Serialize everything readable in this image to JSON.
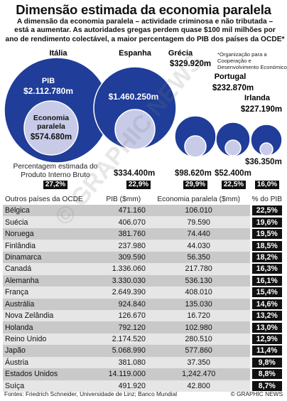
{
  "title": "Dimensão estimada da economia paralela",
  "intro": [
    "A dimensão da economia paralela – actividade criminosa e não tributada –",
    "está a aumentar. As autoridades gregas perdem quase $100 mil milhões por",
    "ano de rendimento colectável, a maior percentagem do PIB dos países da OCDE*"
  ],
  "note": "*Organização para a Cooperação e Desenvolvimento Económico",
  "colors": {
    "outer": "#1f3d99",
    "inner": "#c8cbe8",
    "dark": "#111111"
  },
  "bubbles": {
    "pib_label": "PIB",
    "shadow_label": "Economia paralela",
    "pct_caption": "Percentagem estimada do Produto Interno Bruto",
    "countries": [
      {
        "name": "Itália",
        "pib": "$2.112.780m",
        "shadow": "$574.680m",
        "pct": "27,2%"
      },
      {
        "name": "Espanha",
        "pib": "$1.460.250m",
        "shadow": "$334.400m",
        "pct": "22,9%"
      },
      {
        "name": "Grécia",
        "pib": "$329.920m",
        "shadow": "$98.620m",
        "pct": "29,9%"
      },
      {
        "name": "Portugal",
        "pib": "$232.870m",
        "shadow": "$52.400m",
        "pct": "22,5%"
      },
      {
        "name": "Irlanda",
        "pib": "$227.190m",
        "shadow": "$36.350m",
        "pct": "16,0%"
      }
    ]
  },
  "table": {
    "headers": [
      "Outros países da OCDE",
      "PIB ($mm)",
      "Economia paralela ($mm)",
      "% do PIB"
    ],
    "rows": [
      [
        "Bélgica",
        "471.160",
        "106.010",
        "22,5%"
      ],
      [
        "Suécia",
        "406.070",
        "79.590",
        "19,6%"
      ],
      [
        "Noruega",
        "381.760",
        "74.440",
        "19,5%"
      ],
      [
        "Finlândia",
        "237.980",
        "44.030",
        "18,5%"
      ],
      [
        "Dinamarca",
        "309.590",
        "56.350",
        "18,2%"
      ],
      [
        "Canadá",
        "1.336.060",
        "217.780",
        "16,3%"
      ],
      [
        "Alemanha",
        "3.330.030",
        "536.130",
        "16,1%"
      ],
      [
        "França",
        "2.649.390",
        "408.010",
        "15,4%"
      ],
      [
        "Austrália",
        "924.840",
        "135.030",
        "14,6%"
      ],
      [
        "Nova Zelândia",
        "126.670",
        "16.720",
        "13,2%"
      ],
      [
        "Holanda",
        "792.120",
        "102.980",
        "13,0%"
      ],
      [
        "Reino Unido",
        "2.174.520",
        "280.510",
        "12,9%"
      ],
      [
        "Japão",
        "5.068.990",
        "577.860",
        "11,4%"
      ],
      [
        "Áustria",
        "381.080",
        "37.350",
        "9,8%"
      ],
      [
        "Estados Unidos",
        "14.119.000",
        "1,242.470",
        "8,8%"
      ],
      [
        "Suíça",
        "491.920",
        "42.800",
        "8,7%"
      ]
    ]
  },
  "source": "Fontes: Friedrich Schneider, Universidade de Linz; Banco Mundial",
  "credit": "© GRAPHIC NEWS",
  "watermark": "© GRAPHIC NEWS",
  "chart_data": {
    "type": "table",
    "title": "Dimensão estimada da economia paralela",
    "featured": {
      "units": "$m",
      "countries": [
        "Itália",
        "Espanha",
        "Grécia",
        "Portugal",
        "Irlanda"
      ],
      "pib": [
        2112780,
        1460250,
        329920,
        232870,
        227190
      ],
      "economia_paralela": [
        574680,
        334400,
        98620,
        52400,
        36350
      ],
      "pct_pib": [
        27.2,
        22.9,
        29.9,
        22.5,
        16.0
      ]
    },
    "others": {
      "columns": [
        "Outros países da OCDE",
        "PIB ($mm)",
        "Economia paralela ($mm)",
        "% do PIB"
      ],
      "countries": [
        "Bélgica",
        "Suécia",
        "Noruega",
        "Finlândia",
        "Dinamarca",
        "Canadá",
        "Alemanha",
        "França",
        "Austrália",
        "Nova Zelândia",
        "Holanda",
        "Reino Unido",
        "Japão",
        "Áustria",
        "Estados Unidos",
        "Suíça"
      ],
      "pib": [
        471160,
        406070,
        381760,
        237980,
        309590,
        1336060,
        3330030,
        2649390,
        924840,
        126670,
        792120,
        2174520,
        5068990,
        381080,
        14119000,
        491920
      ],
      "economia_paralela": [
        106010,
        79590,
        74440,
        44030,
        56350,
        217780,
        536130,
        408010,
        135030,
        16720,
        102980,
        280510,
        577860,
        37350,
        1242470,
        42800
      ],
      "pct_pib": [
        22.5,
        19.6,
        19.5,
        18.5,
        18.2,
        16.3,
        16.1,
        15.4,
        14.6,
        13.2,
        13.0,
        12.9,
        11.4,
        9.8,
        8.8,
        8.7
      ]
    }
  }
}
